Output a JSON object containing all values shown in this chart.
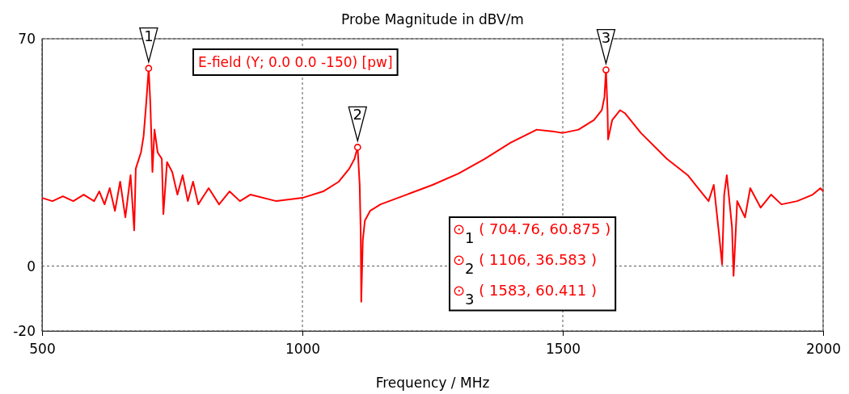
{
  "chart_data": {
    "type": "line",
    "title": "Probe Magnitude in dBV/m",
    "xlabel": "Frequency / MHz",
    "xlim": [
      500,
      2000
    ],
    "xticks": [
      500,
      1000,
      1500,
      2000
    ],
    "ylim": [
      -20,
      70
    ],
    "yticks": [
      -20,
      0,
      70
    ],
    "grid": true,
    "legend": "top",
    "line_style": "solid",
    "marker": "none",
    "series": [
      {
        "name": "E-field (Y; 0.0 0.0 -150) [pw]",
        "color": "#ff0000",
        "x": [
          500,
          520,
          540,
          560,
          580,
          600,
          610,
          620,
          630,
          640,
          650,
          660,
          670,
          677,
          680,
          690,
          695,
          700,
          704.76,
          708,
          712,
          716,
          722,
          730,
          733,
          740,
          750,
          760,
          770,
          780,
          790,
          800,
          820,
          840,
          860,
          880,
          900,
          950,
          1000,
          1040,
          1070,
          1090,
          1100,
          1106,
          1110,
          1112,
          1113,
          1116,
          1120,
          1130,
          1150,
          1200,
          1250,
          1300,
          1350,
          1400,
          1450,
          1480,
          1500,
          1530,
          1560,
          1575,
          1580,
          1583,
          1586,
          1587,
          1595,
          1610,
          1620,
          1650,
          1700,
          1740,
          1760,
          1780,
          1790,
          1800,
          1806,
          1810,
          1815,
          1825,
          1828,
          1835,
          1850,
          1860,
          1880,
          1900,
          1920,
          1950,
          1980,
          1995,
          2000
        ],
        "values": [
          21,
          20,
          21.5,
          20,
          22,
          20,
          23,
          19,
          24,
          17,
          26,
          15,
          28,
          11,
          30,
          35,
          40,
          50,
          60.875,
          50,
          29,
          42,
          35,
          33,
          16,
          32,
          29,
          22,
          28,
          20,
          26,
          19,
          24,
          19,
          23,
          20,
          22,
          20,
          21,
          23,
          26,
          30,
          33,
          36.583,
          25,
          10,
          -11,
          8,
          14,
          17,
          19,
          22,
          25,
          28.5,
          33,
          38,
          42,
          41.5,
          41,
          42,
          45,
          48,
          52,
          60.411,
          48,
          39,
          45,
          48,
          47,
          41,
          33,
          28,
          24,
          20,
          25,
          10,
          0.5,
          22,
          28,
          12,
          -3,
          20,
          15,
          24,
          18,
          22,
          19,
          20,
          22,
          24,
          23
        ]
      },
      {
        "type": "scatter",
        "marker": "circle",
        "color": "#ff0000",
        "x": [
          704.76,
          1106,
          1583
        ],
        "values": [
          60.875,
          36.583,
          60.411
        ]
      }
    ],
    "annotations": [
      {
        "text": "1",
        "x": 704.76,
        "y": 60.875
      },
      {
        "text": "2",
        "x": 1106,
        "y": 36.583
      },
      {
        "text": "3",
        "x": 1583,
        "y": 60.411
      },
      "⊙$_{1}$ ( 704.76, 60.875 )",
      "⊙$_{2}$ ( 1106, 36.583 )",
      "⊙$_{3}$ ( 1583, 60.411 )"
    ]
  }
}
